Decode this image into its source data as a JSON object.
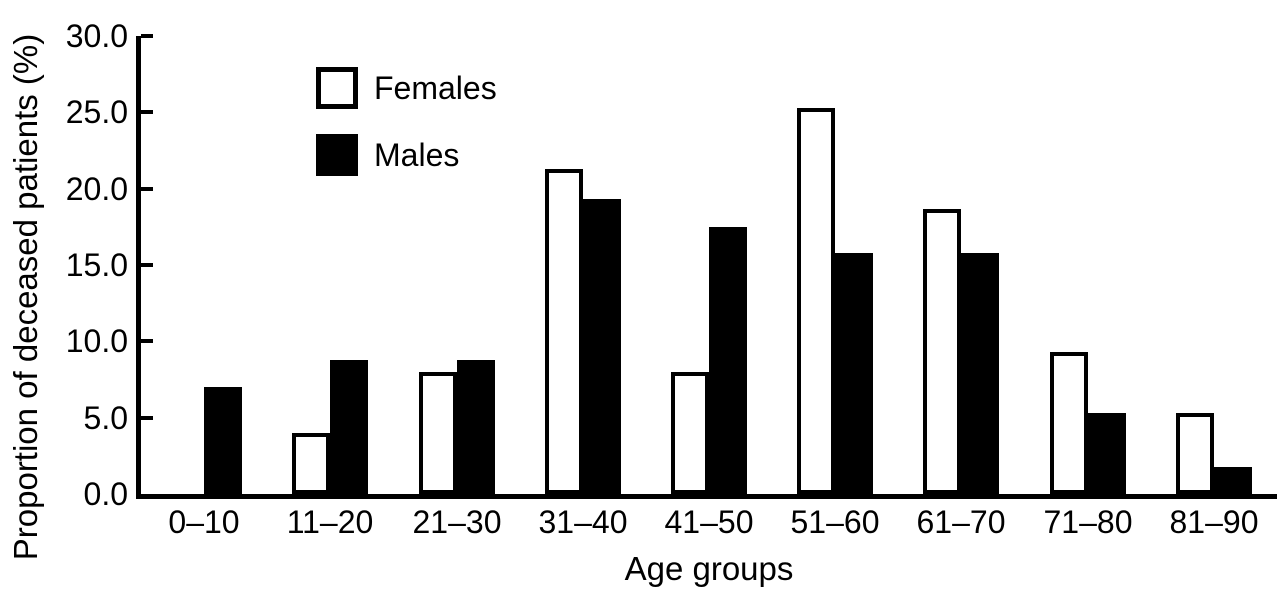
{
  "chart_data": {
    "type": "bar",
    "title": "",
    "xlabel": "Age groups",
    "ylabel": "Proportion of deceased patients (%)",
    "categories": [
      "0–10",
      "11–20",
      "21–30",
      "31–40",
      "41–50",
      "51–60",
      "61–70",
      "71–80",
      "81–90"
    ],
    "series": [
      {
        "name": "Females",
        "fill": "#ffffff",
        "border": "#000000",
        "values": [
          0.0,
          4.0,
          8.0,
          21.3,
          8.0,
          25.3,
          18.7,
          9.3,
          5.3
        ]
      },
      {
        "name": "Males",
        "fill": "#000000",
        "border": "#000000",
        "values": [
          7.0,
          8.8,
          8.8,
          19.3,
          17.5,
          15.8,
          15.8,
          5.3,
          1.8
        ]
      }
    ],
    "ylim": [
      0,
      30
    ],
    "yticks": [
      "0.0",
      "5.0",
      "10.0",
      "15.0",
      "20.0",
      "25.0",
      "30.0"
    ],
    "grid": false,
    "legend_position": "top-left",
    "axis_color": "#000000",
    "background_color": "#ffffff"
  }
}
